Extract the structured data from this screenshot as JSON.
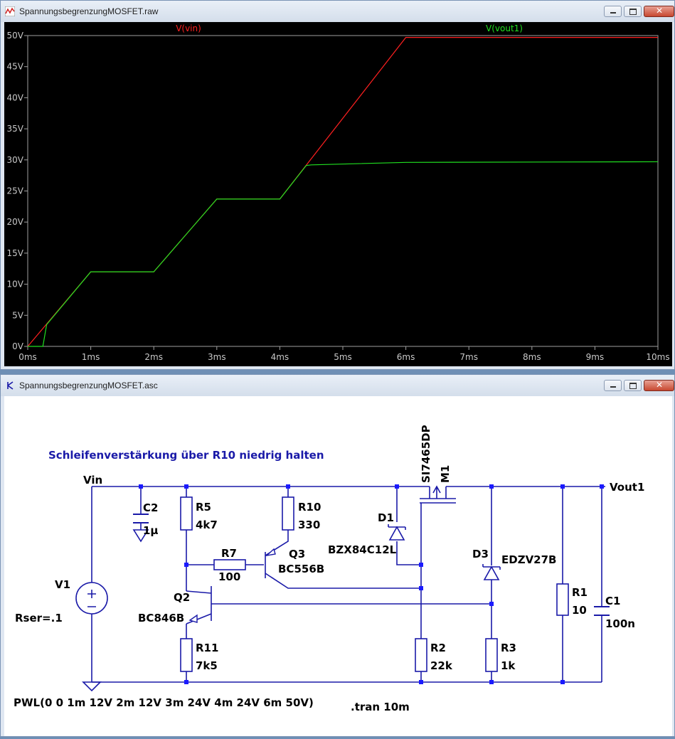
{
  "waveform_window": {
    "title": "SpannungsbegrenzungMOSFET.raw",
    "chart_data": {
      "type": "line",
      "xlabel": "",
      "ylabel": "",
      "xlim": [
        0,
        10
      ],
      "ylim": [
        0,
        50
      ],
      "x_ticks": [
        "0ms",
        "1ms",
        "2ms",
        "3ms",
        "4ms",
        "5ms",
        "6ms",
        "7ms",
        "8ms",
        "9ms",
        "10ms"
      ],
      "y_ticks": [
        "0V",
        "5V",
        "10V",
        "15V",
        "20V",
        "25V",
        "30V",
        "35V",
        "40V",
        "45V",
        "50V"
      ],
      "series": [
        {
          "name": "V(vin)",
          "color": "#ff2020",
          "x": [
            0,
            1,
            2,
            3,
            4,
            6,
            10
          ],
          "y": [
            0,
            12,
            12,
            23.7,
            23.7,
            49.7,
            49.7
          ]
        },
        {
          "name": "V(vout1)",
          "color": "#20e020",
          "x": [
            0,
            0.24,
            0.3,
            1,
            2,
            3,
            4,
            4.42,
            4.5,
            6,
            10
          ],
          "y": [
            0,
            0,
            3.5,
            12,
            12,
            23.7,
            23.7,
            29.1,
            29.2,
            29.6,
            29.7
          ]
        }
      ]
    }
  },
  "schematic_window": {
    "title": "SpannungsbegrenzungMOSFET.asc",
    "comment": "Schleifenverstärkung über R10 niedrig halten",
    "net_vin": "Vin",
    "net_vout": "Vout1",
    "components": {
      "C2": {
        "ref": "C2",
        "value": "1µ"
      },
      "R5": {
        "ref": "R5",
        "value": "4k7"
      },
      "R10": {
        "ref": "R10",
        "value": "330"
      },
      "R7": {
        "ref": "R7",
        "value": "100"
      },
      "Q3": {
        "ref": "Q3",
        "value": "BC556B"
      },
      "D1": {
        "ref": "D1",
        "value": "BZX84C12L"
      },
      "M1": {
        "ref": "M1",
        "value": "SI7465DP"
      },
      "D3": {
        "ref": "D3",
        "value": "EDZV27B"
      },
      "R1": {
        "ref": "R1",
        "value": "10"
      },
      "C1": {
        "ref": "C1",
        "value": "100n"
      },
      "V1": {
        "ref": "V1",
        "param": "Rser=.1"
      },
      "Q2": {
        "ref": "Q2",
        "value": "BC846B"
      },
      "R11": {
        "ref": "R11",
        "value": "7k5"
      },
      "R2": {
        "ref": "R2",
        "value": "22k"
      },
      "R3": {
        "ref": "R3",
        "value": "1k"
      }
    },
    "pwl": "PWL(0 0 1m 12V 2m 12V 3m 24V 4m 24V 6m 50V)",
    "tran": ".tran 10m"
  },
  "colors": {
    "wire": "#1a1aa8",
    "node": "#1a1aff",
    "comment": "#1a1aa8",
    "plot_bg": "#000000"
  }
}
